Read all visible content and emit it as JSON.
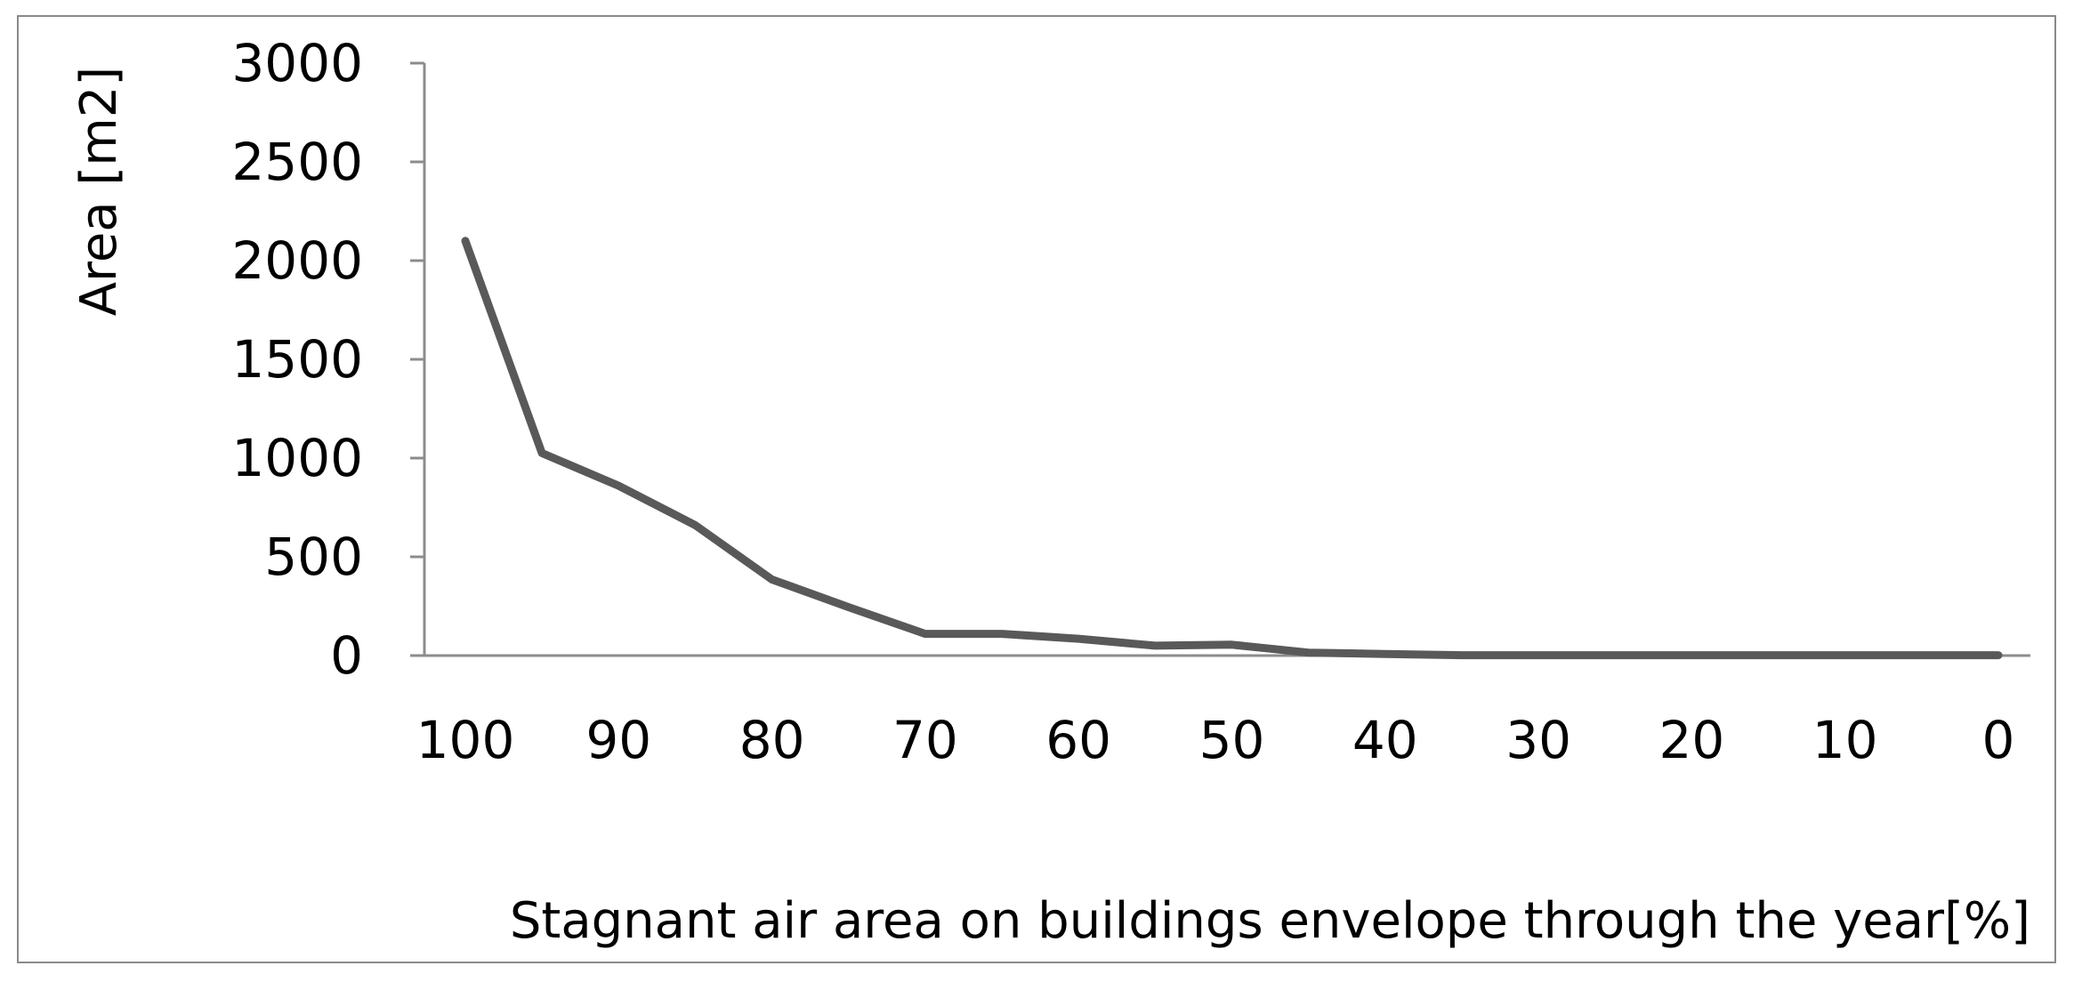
{
  "chart_data": {
    "type": "line",
    "title": "",
    "xlabel": "Stagnant air area on buildings envelope through the year[%]",
    "ylabel": "Area [m2]",
    "x_reversed": true,
    "xlim": [
      100,
      0
    ],
    "ylim": [
      0,
      3000
    ],
    "x_ticks": [
      "100",
      "90",
      "80",
      "70",
      "60",
      "50",
      "40",
      "30",
      "20",
      "10",
      "0"
    ],
    "y_ticks": [
      "0",
      "500",
      "1000",
      "1500",
      "2000",
      "2500",
      "3000"
    ],
    "grid": false,
    "legend": "none",
    "series": [
      {
        "color": "#595959",
        "x": [
          100,
          95,
          90,
          85,
          80,
          75,
          70,
          65,
          60,
          55,
          50,
          45,
          40,
          35,
          30,
          25,
          20,
          15,
          10,
          5,
          0
        ],
        "values": [
          2100,
          1025,
          860,
          660,
          385,
          245,
          110,
          110,
          85,
          50,
          55,
          15,
          8,
          2,
          2,
          2,
          2,
          2,
          2,
          2,
          2
        ]
      }
    ]
  }
}
